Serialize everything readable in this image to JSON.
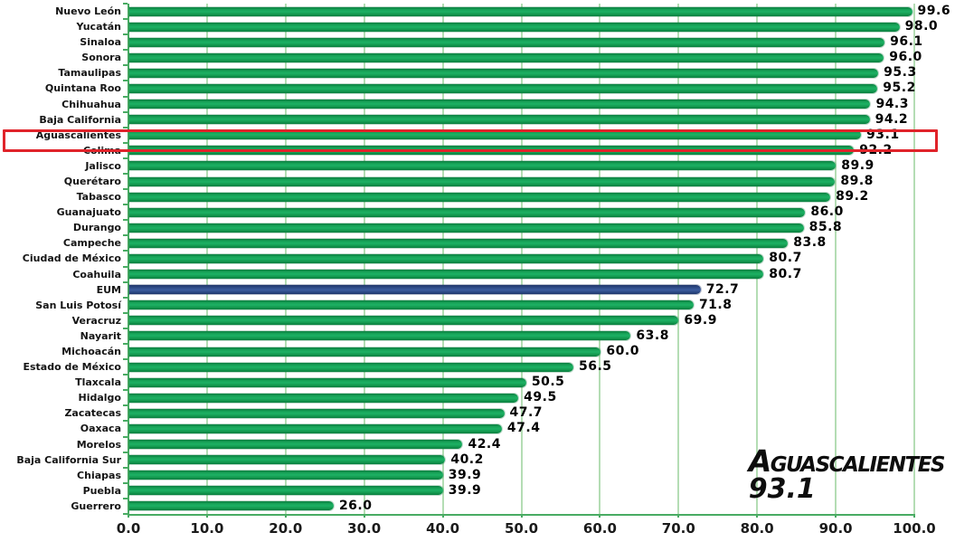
{
  "chart_data": {
    "type": "bar",
    "orientation": "horizontal",
    "title": "",
    "xlabel": "",
    "ylabel": "",
    "xlim": [
      0,
      100
    ],
    "grid": "vertical gridlines every 10, light green, legend none",
    "categories": [
      "Nuevo León",
      "Yucatán",
      "Sinaloa",
      "Sonora",
      "Tamaulipas",
      "Quintana Roo",
      "Chihuahua",
      "Baja California",
      "Aguascalientes",
      "Colima",
      "Jalisco",
      "Querétaro",
      "Tabasco",
      "Guanajuato",
      "Durango",
      "Campeche",
      "Ciudad de México",
      "Coahuila",
      "EUM",
      "San Luis Potosí",
      "Veracruz",
      "Nayarit",
      "Michoacán",
      "Estado de México",
      "Tlaxcala",
      "Hidalgo",
      "Zacatecas",
      "Oaxaca",
      "Morelos",
      "Baja California Sur",
      "Chiapas",
      "Puebla",
      "Guerrero"
    ],
    "values": [
      99.6,
      98.0,
      96.1,
      96.0,
      95.3,
      95.2,
      94.3,
      94.2,
      93.1,
      92.2,
      89.9,
      89.8,
      89.2,
      86.0,
      85.8,
      83.8,
      80.7,
      80.7,
      72.7,
      71.8,
      69.9,
      63.8,
      60.0,
      56.5,
      50.5,
      49.5,
      47.7,
      47.4,
      42.4,
      40.2,
      39.9,
      39.9,
      26.0
    ],
    "value_labels": [
      "99.6",
      "98.0",
      "96.1",
      "96.0",
      "95.3",
      "95.2",
      "94.3",
      "94.2",
      "93.1",
      "92.2",
      "89.9",
      "89.8",
      "89.2",
      "86.0",
      "85.8",
      "83.8",
      "80.7",
      "80.7",
      "72.7",
      "71.8",
      "69.9",
      "63.8",
      "60.0",
      "56.5",
      "50.5",
      "49.5",
      "47.7",
      "47.4",
      "42.4",
      "40.2",
      "39.9",
      "39.9",
      "26.0"
    ],
    "x_ticks": [
      "0.0",
      "10.0",
      "20.0",
      "30.0",
      "40.0",
      "50.0",
      "60.0",
      "70.0",
      "80.0",
      "90.0",
      "100.0"
    ],
    "colors": {
      "bar_green": "#15a257",
      "bar_eum_blue": "#32508d",
      "gridline": "#b4ddb4",
      "axis": "#49ab63",
      "highlight_red": "#e0232a",
      "text": "#000000"
    },
    "highlight": {
      "category": "Aguascalientes",
      "style": "red outline box around full row"
    },
    "special_series": {
      "category": "EUM",
      "color_name": "blue"
    },
    "annotation": {
      "line1": "Aguascalientes",
      "line2": "93.1",
      "position": "bottom-right"
    }
  }
}
